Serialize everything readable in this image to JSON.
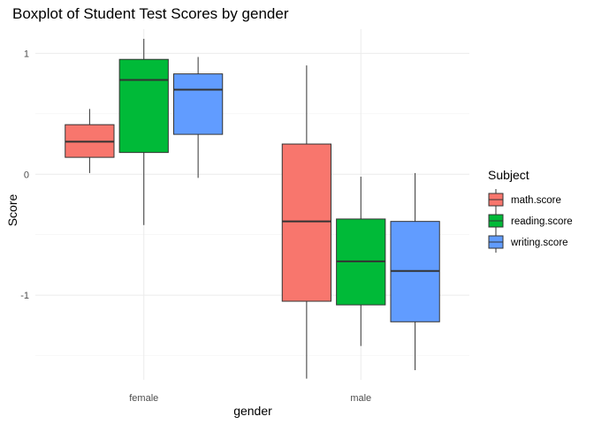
{
  "chart_data": {
    "type": "boxplot",
    "title": "Boxplot of Student Test Scores by gender",
    "xlabel": "gender",
    "ylabel": "Score",
    "categories": [
      "female",
      "male"
    ],
    "ylim": [
      -1.7,
      1.2
    ],
    "yticks": [
      1,
      0,
      -1
    ],
    "ytick_labels": [
      "1",
      "0",
      "-1"
    ],
    "grid": true,
    "legend": {
      "title": "Subject",
      "position": "right"
    },
    "series": [
      {
        "name": "math.score",
        "color": "#F8766D",
        "boxes": [
          {
            "category": "female",
            "min": 0.01,
            "q1": 0.14,
            "median": 0.27,
            "q3": 0.41,
            "max": 0.54
          },
          {
            "category": "male",
            "min": -1.69,
            "q1": -1.05,
            "median": -0.39,
            "q3": 0.25,
            "max": 0.9
          }
        ]
      },
      {
        "name": "reading.score",
        "color": "#00BA38",
        "boxes": [
          {
            "category": "female",
            "min": -0.42,
            "q1": 0.18,
            "median": 0.78,
            "q3": 0.95,
            "max": 1.12
          },
          {
            "category": "male",
            "min": -1.42,
            "q1": -1.08,
            "median": -0.72,
            "q3": -0.37,
            "max": -0.02
          }
        ]
      },
      {
        "name": "writing.score",
        "color": "#619CFF",
        "boxes": [
          {
            "category": "female",
            "min": -0.03,
            "q1": 0.33,
            "median": 0.7,
            "q3": 0.83,
            "max": 0.97
          },
          {
            "category": "male",
            "min": -1.62,
            "q1": -1.22,
            "median": -0.8,
            "q3": -0.39,
            "max": 0.01
          }
        ]
      }
    ]
  }
}
